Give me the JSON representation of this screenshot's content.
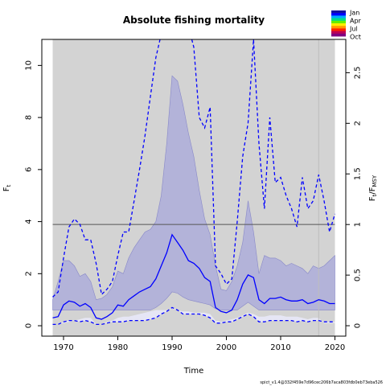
{
  "chart_data": {
    "type": "area",
    "title": "Absolute fishing mortality",
    "xlabel": "Time",
    "ylabel": "F",
    "ylabel_sub": "t",
    "y2label_prefix": "F",
    "y2label_sub1": "t",
    "y2label_mid": "/F",
    "y2label_sub2": "MSY",
    "xlim": [
      1966,
      2022
    ],
    "ylim": [
      -0.4,
      11.0
    ],
    "y2lim": [
      -0.103,
      2.829
    ],
    "x_ticks": [
      1970,
      1980,
      1990,
      2000,
      2010,
      2020
    ],
    "y_ticks": [
      0,
      2,
      4,
      6,
      8,
      10
    ],
    "y2_ticks": [
      0,
      0.5,
      1,
      1.5,
      2,
      2.5
    ],
    "y2_tick_labels": [
      "0",
      "0.5",
      "1",
      "1.5",
      "2",
      "2.5"
    ],
    "fmsy": 3.89,
    "background_range": [
      1968,
      2020
    ],
    "projection_start": 2017,
    "colors": {
      "background": "#d3d3d3",
      "band": "#b3b3d9",
      "band_edge": "#8888c8",
      "line": "#0000ff",
      "inner_band": "#e6e6f5",
      "hline": "#555555"
    },
    "legend": {
      "labels": [
        "Jan",
        "Apr",
        "Jul",
        "Oct"
      ],
      "colors": [
        "#1010a0",
        "#0000ff",
        "#00aaff",
        "#00dd88",
        "#66ee00",
        "#ffee00",
        "#ff9900",
        "#ff2200",
        "#bb0055",
        "#800080"
      ]
    },
    "series": [
      {
        "x": [
          1968,
          1969,
          1970,
          1971,
          1972,
          1973,
          1974,
          1975,
          1976,
          1977,
          1978,
          1979,
          1980,
          1981,
          1982,
          1983,
          1984,
          1985,
          1986,
          1987,
          1988,
          1989,
          1990,
          1991,
          1992,
          1993,
          1994,
          1995,
          1996,
          1997,
          1998,
          1999,
          2000,
          2001,
          2002,
          2003,
          2004,
          2005,
          2006,
          2007,
          2008,
          2009,
          2010,
          2011,
          2012,
          2013,
          2014,
          2015,
          2016,
          2017,
          2018,
          2019,
          2020
        ],
        "upper": [
          1.0,
          1.7,
          2.5,
          2.5,
          2.3,
          1.9,
          2.0,
          1.7,
          1.0,
          1.05,
          1.2,
          1.5,
          2.1,
          2.0,
          2.6,
          3.0,
          3.3,
          3.6,
          3.7,
          4.0,
          5.0,
          7.0,
          9.6,
          9.4,
          8.5,
          7.4,
          6.5,
          5.2,
          4.1,
          3.5,
          2.3,
          1.4,
          1.35,
          1.7,
          2.3,
          3.2,
          4.8,
          3.6,
          2.0,
          2.7,
          2.6,
          2.6,
          2.5,
          2.3,
          2.4,
          2.3,
          2.2,
          2.0,
          2.3,
          2.2,
          2.3,
          2.5,
          2.7
        ],
        "lower": [
          0.6,
          0.6,
          0.6,
          0.6,
          0.6,
          0.6,
          0.6,
          0.6,
          0.6,
          0.6,
          0.6,
          0.6,
          0.6,
          0.6,
          0.6,
          0.6,
          0.6,
          0.6,
          0.6,
          0.7,
          0.85,
          1.05,
          1.3,
          1.25,
          1.1,
          1.0,
          0.95,
          0.9,
          0.85,
          0.8,
          0.65,
          0.6,
          0.6,
          0.6,
          0.6,
          0.75,
          0.9,
          0.75,
          0.6,
          0.6,
          0.6,
          0.6,
          0.6,
          0.6,
          0.6,
          0.6,
          0.6,
          0.6,
          0.6,
          0.6,
          0.6,
          0.6,
          0.6
        ],
        "median": [
          0.3,
          0.35,
          0.8,
          0.95,
          0.9,
          0.75,
          0.85,
          0.7,
          0.3,
          0.25,
          0.35,
          0.5,
          0.8,
          0.75,
          1.0,
          1.15,
          1.3,
          1.4,
          1.5,
          1.8,
          2.3,
          2.8,
          3.5,
          3.2,
          2.9,
          2.5,
          2.4,
          2.2,
          1.85,
          1.7,
          0.7,
          0.55,
          0.5,
          0.6,
          1.0,
          1.6,
          1.95,
          1.85,
          1.0,
          0.85,
          1.05,
          1.05,
          1.1,
          1.0,
          0.95,
          0.95,
          1.0,
          0.85,
          0.9,
          1.0,
          0.95,
          0.85,
          0.85
        ],
        "upper_dashed": [
          1.1,
          1.3,
          2.6,
          3.8,
          4.1,
          3.9,
          3.3,
          3.3,
          2.4,
          1.2,
          1.4,
          1.7,
          2.7,
          3.6,
          3.6,
          4.8,
          6.0,
          7.3,
          8.8,
          10.3,
          11.2,
          12.5,
          13.0,
          12.5,
          12.0,
          11.5,
          10.7,
          8.0,
          7.6,
          8.4,
          2.3,
          2.0,
          1.6,
          1.8,
          4.0,
          6.5,
          7.8,
          11.0,
          7.0,
          4.5,
          8.0,
          5.5,
          5.7,
          5.0,
          4.5,
          3.8,
          5.7,
          4.5,
          4.8,
          5.8,
          4.8,
          3.6,
          4.3
        ],
        "lower_dashed": [
          0.05,
          0.05,
          0.15,
          0.2,
          0.2,
          0.15,
          0.2,
          0.15,
          0.05,
          0.05,
          0.1,
          0.15,
          0.15,
          0.15,
          0.2,
          0.2,
          0.2,
          0.2,
          0.25,
          0.3,
          0.45,
          0.55,
          0.7,
          0.6,
          0.45,
          0.45,
          0.45,
          0.45,
          0.4,
          0.3,
          0.1,
          0.1,
          0.15,
          0.15,
          0.25,
          0.35,
          0.45,
          0.35,
          0.15,
          0.15,
          0.2,
          0.2,
          0.2,
          0.2,
          0.2,
          0.15,
          0.2,
          0.15,
          0.2,
          0.2,
          0.15,
          0.15,
          0.15
        ],
        "inner_lower": [
          0.05,
          0.05,
          0.1,
          0.15,
          0.2,
          0.25,
          0.3,
          0.3,
          0.05,
          0.05,
          0.15,
          0.2,
          0.3,
          0.35,
          0.35,
          0.4,
          0.45,
          0.5,
          0.55,
          0.6,
          0.6,
          0.6,
          0.65,
          0.6,
          0.55,
          0.55,
          0.5,
          0.5,
          0.5,
          0.45,
          0.2,
          0.15,
          0.2,
          0.25,
          0.3,
          0.4,
          0.5,
          0.45,
          0.35,
          0.35,
          0.4,
          0.4,
          0.4,
          0.35,
          0.35,
          0.35,
          0.3,
          0.25,
          0.3,
          0.3,
          0.1,
          0.1,
          0.1
        ]
      }
    ]
  },
  "footer_text": "spict_v1.4@332f459e7d96cec206b7aca803fdb0eb73eba526"
}
